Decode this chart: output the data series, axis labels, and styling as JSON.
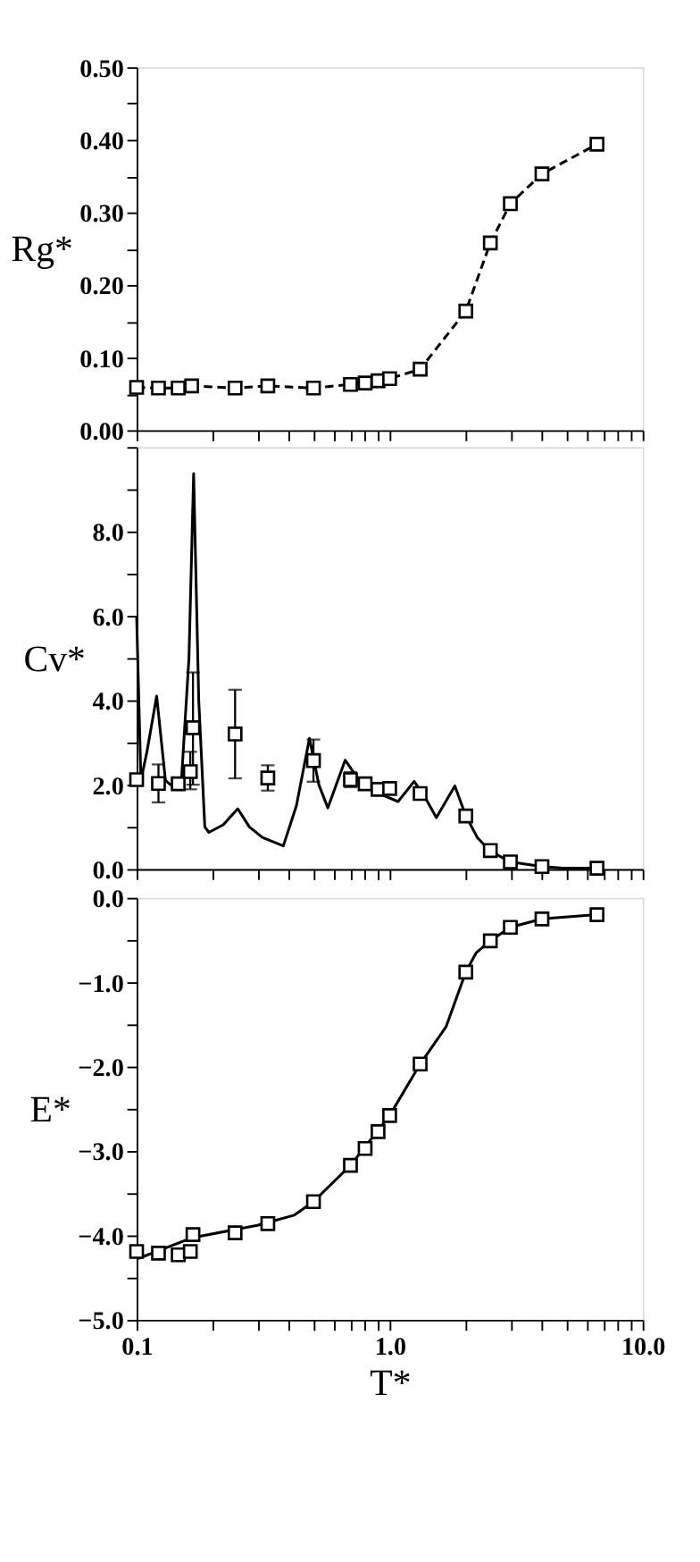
{
  "chart_data": [
    {
      "type": "line",
      "ylabel": "Rg*",
      "log": "x",
      "tick_labels": "y",
      "grid": false,
      "xlim": [
        0.1,
        10
      ],
      "ylim": [
        0,
        0.5
      ],
      "xticks": [
        {
          "value": 0.1,
          "label": null
        },
        {
          "value": 0.2,
          "label": null
        },
        {
          "value": 0.3,
          "label": null
        },
        {
          "value": 0.4,
          "label": null
        },
        {
          "value": 0.5,
          "label": null
        },
        {
          "value": 0.6,
          "label": null
        },
        {
          "value": 0.7,
          "label": null
        },
        {
          "value": 0.8,
          "label": null
        },
        {
          "value": 0.9,
          "label": null
        },
        {
          "value": 1,
          "label": null
        },
        {
          "value": 2,
          "label": null
        },
        {
          "value": 3,
          "label": null
        },
        {
          "value": 4,
          "label": null
        },
        {
          "value": 5,
          "label": null
        },
        {
          "value": 6,
          "label": null
        },
        {
          "value": 7,
          "label": null
        },
        {
          "value": 8,
          "label": null
        },
        {
          "value": 9,
          "label": null
        },
        {
          "value": 10,
          "label": null
        }
      ],
      "yticks": [
        {
          "value": 0,
          "label": "0.00"
        },
        {
          "value": 0.05,
          "label": null
        },
        {
          "value": 0.1,
          "label": "0.10"
        },
        {
          "value": 0.15,
          "label": null
        },
        {
          "value": 0.2,
          "label": "0.20"
        },
        {
          "value": 0.25,
          "label": null
        },
        {
          "value": 0.3,
          "label": "0.30"
        },
        {
          "value": 0.35,
          "label": null
        },
        {
          "value": 0.4,
          "label": "0.40"
        },
        {
          "value": 0.45,
          "label": null
        },
        {
          "value": 0.5,
          "label": "0.50"
        }
      ],
      "series": [
        {
          "color": "#000000",
          "marker": "square",
          "line_style": "dashed",
          "x": [
            0.1,
            0.122,
            0.146,
            0.165,
            0.245,
            0.33,
            0.5,
            0.7,
            0.8,
            0.9,
            1.0,
            1.32,
            2.0,
            2.5,
            3.0,
            4.0,
            6.6
          ],
          "values": [
            0.059,
            0.058,
            0.058,
            0.061,
            0.058,
            0.061,
            0.058,
            0.063,
            0.065,
            0.068,
            0.071,
            0.084,
            0.164,
            0.258,
            0.312,
            0.353,
            0.394
          ]
        }
      ]
    },
    {
      "type": "line",
      "ylabel": "Cv*",
      "log": "x",
      "tick_labels": "y",
      "grid": false,
      "xlim": [
        0.1,
        10
      ],
      "ylim": [
        0,
        10
      ],
      "xticks": [
        {
          "value": 0.1,
          "label": null
        },
        {
          "value": 0.2,
          "label": null
        },
        {
          "value": 0.3,
          "label": null
        },
        {
          "value": 0.4,
          "label": null
        },
        {
          "value": 0.5,
          "label": null
        },
        {
          "value": 0.6,
          "label": null
        },
        {
          "value": 0.7,
          "label": null
        },
        {
          "value": 0.8,
          "label": null
        },
        {
          "value": 0.9,
          "label": null
        },
        {
          "value": 1,
          "label": null
        },
        {
          "value": 2,
          "label": null
        },
        {
          "value": 3,
          "label": null
        },
        {
          "value": 4,
          "label": null
        },
        {
          "value": 5,
          "label": null
        },
        {
          "value": 6,
          "label": null
        },
        {
          "value": 7,
          "label": null
        },
        {
          "value": 8,
          "label": null
        },
        {
          "value": 9,
          "label": null
        },
        {
          "value": 10,
          "label": null
        }
      ],
      "yticks": [
        {
          "value": 0,
          "label": "0.0"
        },
        {
          "value": 1,
          "label": null
        },
        {
          "value": 2,
          "label": "2.0"
        },
        {
          "value": 3,
          "label": null
        },
        {
          "value": 4,
          "label": "4.0"
        },
        {
          "value": 5,
          "label": null
        },
        {
          "value": 6,
          "label": "6.0"
        },
        {
          "value": 7,
          "label": null
        },
        {
          "value": 8,
          "label": "8.0"
        },
        {
          "value": 9,
          "label": null
        },
        {
          "value": 10,
          "label": null
        }
      ],
      "series": [
        {
          "color": "#000000",
          "marker": "none",
          "line_style": "solid",
          "x": [
            0.1,
            0.104,
            0.11,
            0.12,
            0.13,
            0.136,
            0.15,
            0.161,
            0.168,
            0.176,
            0.186,
            0.193,
            0.22,
            0.251,
            0.279,
            0.314,
            0.38,
            0.428,
            0.482,
            0.525,
            0.57,
            0.667,
            0.758,
            0.9,
            1.08,
            1.25,
            1.38,
            1.53,
            1.81,
            2.0,
            2.22,
            2.48,
            3.0,
            4.0,
            4.99,
            6.64
          ],
          "values": [
            6.0,
            2.1,
            2.8,
            4.1,
            2.1,
            2.0,
            2.0,
            5.0,
            9.37,
            4.0,
            1.0,
            0.87,
            1.05,
            1.43,
            1.0,
            0.75,
            0.55,
            1.5,
            3.1,
            2.0,
            1.45,
            2.58,
            2.1,
            1.8,
            1.6,
            2.08,
            1.7,
            1.22,
            1.97,
            1.26,
            0.75,
            0.44,
            0.17,
            0.06,
            0.02,
            0.02
          ]
        },
        {
          "type": "scatter",
          "color": "#000000",
          "marker": "square",
          "x": [
            0.1,
            0.122,
            0.146,
            0.163,
            0.167,
            0.245,
            0.33,
            0.5,
            0.7,
            0.8,
            0.9,
            1.0,
            1.32,
            2.0,
            2.5,
            3.0,
            4.0,
            6.6
          ],
          "values": [
            2.12,
            2.03,
            2.02,
            2.31,
            3.35,
            3.2,
            2.16,
            2.57,
            2.12,
            2.02,
            1.89,
            1.91,
            1.79,
            1.26,
            0.44,
            0.17,
            0.06,
            0.02
          ],
          "errors": [
            null,
            0.45,
            null,
            [
              1.89,
              2.78
            ],
            [
              2.0,
              4.66
            ],
            1.05,
            0.3,
            0.5,
            0.18,
            null,
            null,
            null,
            null,
            null,
            null,
            null,
            null,
            null
          ]
        }
      ]
    },
    {
      "type": "line",
      "xlabel": "T*",
      "ylabel": "E*",
      "log": "x",
      "grid": false,
      "xlim": [
        0.1,
        10
      ],
      "ylim": [
        -5,
        0
      ],
      "xticks": [
        {
          "value": 0.1,
          "label": "0.1"
        },
        {
          "value": 0.2,
          "label": null
        },
        {
          "value": 0.3,
          "label": null
        },
        {
          "value": 0.4,
          "label": null
        },
        {
          "value": 0.5,
          "label": null
        },
        {
          "value": 0.6,
          "label": null
        },
        {
          "value": 0.7,
          "label": null
        },
        {
          "value": 0.8,
          "label": null
        },
        {
          "value": 0.9,
          "label": null
        },
        {
          "value": 1,
          "label": "1.0"
        },
        {
          "value": 2,
          "label": null
        },
        {
          "value": 3,
          "label": null
        },
        {
          "value": 4,
          "label": null
        },
        {
          "value": 5,
          "label": null
        },
        {
          "value": 6,
          "label": null
        },
        {
          "value": 7,
          "label": null
        },
        {
          "value": 8,
          "label": null
        },
        {
          "value": 9,
          "label": null
        },
        {
          "value": 10,
          "label": "10.0"
        }
      ],
      "yticks": [
        {
          "value": -5,
          "label": "−5.0"
        },
        {
          "value": -4.5,
          "label": null
        },
        {
          "value": -4,
          "label": "−4.0"
        },
        {
          "value": -3.5,
          "label": null
        },
        {
          "value": -3,
          "label": "−3.0"
        },
        {
          "value": -2.5,
          "label": null
        },
        {
          "value": -2,
          "label": "−2.0"
        },
        {
          "value": -1.5,
          "label": null
        },
        {
          "value": -1,
          "label": "−1.0"
        },
        {
          "value": -0.5,
          "label": null
        },
        {
          "value": 0,
          "label": "0.0"
        }
      ],
      "series": [
        {
          "color": "#000000",
          "marker": "none",
          "line_style": "solid",
          "x": [
            0.1,
            0.165,
            0.3,
            0.42,
            0.5,
            0.7,
            1.0,
            1.32,
            1.67,
            2.0,
            2.2,
            2.5,
            3.0,
            4.0,
            6.6
          ],
          "values": [
            -4.28,
            -4.03,
            -3.88,
            -3.76,
            -3.6,
            -3.17,
            -2.58,
            -1.97,
            -1.53,
            -0.88,
            -0.65,
            -0.51,
            -0.35,
            -0.25,
            -0.2
          ]
        },
        {
          "type": "scatter",
          "color": "#000000",
          "marker": "square",
          "x": [
            0.1,
            0.122,
            0.146,
            0.163,
            0.167,
            0.245,
            0.33,
            0.5,
            0.7,
            0.8,
            0.9,
            1.0,
            1.32,
            2.0,
            2.5,
            3.0,
            4.0,
            6.6
          ],
          "values": [
            -4.19,
            -4.21,
            -4.23,
            -4.19,
            -3.99,
            -3.97,
            -3.86,
            -3.6,
            -3.17,
            -2.97,
            -2.77,
            -2.58,
            -1.97,
            -0.88,
            -0.51,
            -0.35,
            -0.25,
            -0.2
          ]
        }
      ]
    }
  ]
}
